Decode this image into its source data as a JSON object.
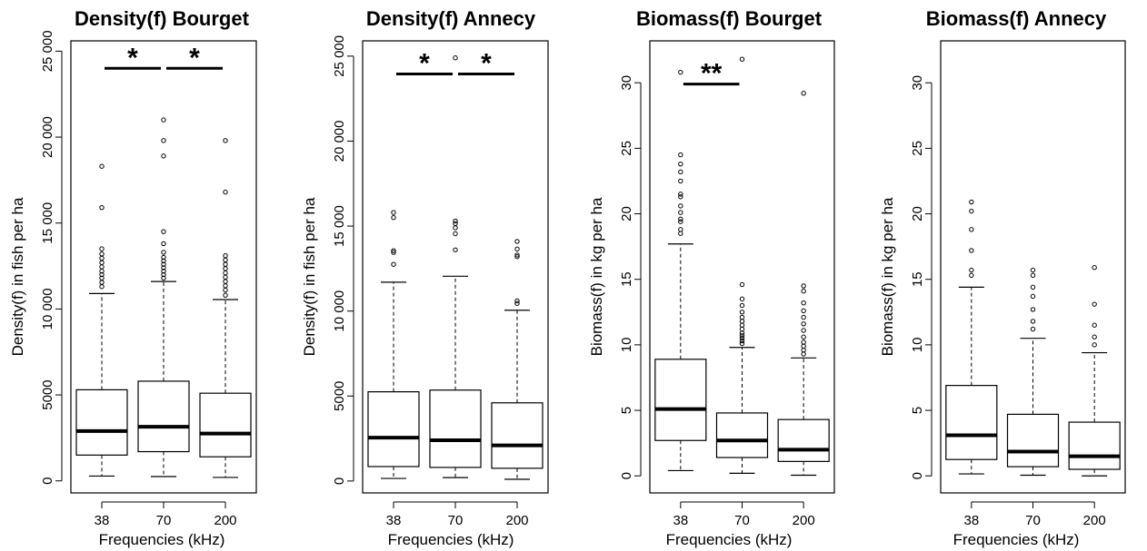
{
  "figure": {
    "panels": [
      {
        "title": "Density(f) Bourget",
        "ylabel": "Density(f) in fish per ha",
        "xlabel": "Frequencies (kHz)"
      },
      {
        "title": "Density(f) Annecy",
        "ylabel": "Density(f) in fish per ha",
        "xlabel": "Frequencies (kHz)"
      },
      {
        "title": "Biomass(f) Bourget",
        "ylabel": "Biomass(f) in kg per ha",
        "xlabel": "Frequencies (kHz)"
      },
      {
        "title": "Biomass(f) Annecy",
        "ylabel": "Biomass(f) in kg per ha",
        "xlabel": "Frequencies (kHz)"
      }
    ]
  },
  "chart_data": [
    {
      "type": "box",
      "title": "Density(f) Bourget",
      "xlabel": "Frequencies (kHz)",
      "ylabel": "Density(f) in fish per ha",
      "categories": [
        "38",
        "70",
        "200"
      ],
      "yticks": [
        0,
        5000,
        10000,
        15000,
        20000,
        25000
      ],
      "ytick_labels": [
        "0",
        "5000",
        "10 000",
        "15 000",
        "20 000",
        "25 000"
      ],
      "ylim": [
        -700,
        25600
      ],
      "boxes": [
        {
          "category": "38",
          "whisker_low": 280,
          "q1": 1500,
          "median": 2900,
          "q3": 5300,
          "whisker_high": 10900,
          "outliers": [
            11300,
            11550,
            11800,
            12000,
            12200,
            12450,
            12700,
            12950,
            13200,
            13500,
            15900,
            18300
          ]
        },
        {
          "category": "70",
          "whisker_low": 250,
          "q1": 1700,
          "median": 3150,
          "q3": 5800,
          "whisker_high": 11600,
          "outliers": [
            11800,
            12000,
            12200,
            12400,
            12600,
            12800,
            13000,
            13300,
            13800,
            14500,
            18900,
            19800,
            21000
          ]
        },
        {
          "category": "200",
          "whisker_low": 200,
          "q1": 1400,
          "median": 2750,
          "q3": 5100,
          "whisker_high": 10550,
          "outliers": [
            10800,
            11100,
            11350,
            11600,
            11850,
            12100,
            12350,
            12600,
            12850,
            13100,
            16800,
            19800
          ]
        }
      ],
      "significance": [
        {
          "from": "38",
          "to": "70",
          "y": 24000,
          "label": "*"
        },
        {
          "from": "70",
          "to": "200",
          "y": 24000,
          "label": "*"
        }
      ]
    },
    {
      "type": "box",
      "title": "Density(f) Annecy",
      "xlabel": "Frequencies (kHz)",
      "ylabel": "Density(f) in fish per ha",
      "categories": [
        "38",
        "70",
        "200"
      ],
      "yticks": [
        0,
        5000,
        10000,
        15000,
        20000,
        25000
      ],
      "ytick_labels": [
        "0",
        "5000",
        "10 000",
        "15 000",
        "20 000",
        "25 000"
      ],
      "ylim": [
        -700,
        25900
      ],
      "boxes": [
        {
          "category": "38",
          "whisker_low": 150,
          "q1": 850,
          "median": 2550,
          "q3": 5250,
          "whisker_high": 11700,
          "outliers": [
            12750,
            13450,
            13550,
            15500,
            15800
          ]
        },
        {
          "category": "70",
          "whisker_low": 200,
          "q1": 800,
          "median": 2400,
          "q3": 5350,
          "whisker_high": 12050,
          "outliers": [
            13600,
            14550,
            14900,
            15150,
            15300,
            24900
          ]
        },
        {
          "category": "200",
          "whisker_low": 100,
          "q1": 750,
          "median": 2100,
          "q3": 4600,
          "whisker_high": 10050,
          "outliers": [
            10450,
            10600,
            13200,
            13300,
            13650,
            14100
          ]
        }
      ],
      "significance": [
        {
          "from": "38",
          "to": "70",
          "y": 23950,
          "label": "*"
        },
        {
          "from": "70",
          "to": "200",
          "y": 23950,
          "label": "*"
        }
      ]
    },
    {
      "type": "box",
      "title": "Biomass(f) Bourget",
      "xlabel": "Frequencies (kHz)",
      "ylabel": "Biomass(f) in kg per ha",
      "categories": [
        "38",
        "70",
        "200"
      ],
      "yticks": [
        0,
        5,
        10,
        15,
        20,
        25,
        30
      ],
      "ytick_labels": [
        "0",
        "5",
        "10",
        "15",
        "20",
        "25",
        "30"
      ],
      "ylim": [
        -1.3,
        33.2
      ],
      "boxes": [
        {
          "category": "38",
          "whisker_low": 0.4,
          "q1": 2.7,
          "median": 5.1,
          "q3": 8.9,
          "whisker_high": 17.7,
          "outliers": [
            18.5,
            18.8,
            19.4,
            19.6,
            20.1,
            20.6,
            21.3,
            21.5,
            22.5,
            23.2,
            23.8,
            24.5,
            30.8
          ]
        },
        {
          "category": "70",
          "whisker_low": 0.2,
          "q1": 1.4,
          "median": 2.7,
          "q3": 4.8,
          "whisker_high": 9.8,
          "outliers": [
            10.1,
            10.3,
            10.5,
            10.7,
            10.9,
            11.2,
            11.5,
            11.8,
            12.1,
            12.5,
            13,
            13.5,
            14.6,
            31.8
          ]
        },
        {
          "category": "200",
          "whisker_low": 0.05,
          "q1": 1.1,
          "median": 2.0,
          "q3": 4.3,
          "whisker_high": 9.0,
          "outliers": [
            9.3,
            9.6,
            9.9,
            10.2,
            10.6,
            11.1,
            11.6,
            12.1,
            12.6,
            13.2,
            14.1,
            14.5,
            29.2
          ]
        }
      ],
      "significance": [
        {
          "from": "38",
          "to": "70",
          "y": 29.9,
          "label": "**"
        }
      ]
    },
    {
      "type": "box",
      "title": "Biomass(f) Annecy",
      "xlabel": "Frequencies (kHz)",
      "ylabel": "Biomass(f) in kg per ha",
      "categories": [
        "38",
        "70",
        "200"
      ],
      "yticks": [
        0,
        5,
        10,
        15,
        20,
        25,
        30
      ],
      "ytick_labels": [
        "0",
        "5",
        "10",
        "15",
        "20",
        "25",
        "30"
      ],
      "ylim": [
        -1.3,
        33.2
      ],
      "boxes": [
        {
          "category": "38",
          "whisker_low": 0.15,
          "q1": 1.25,
          "median": 3.1,
          "q3": 6.9,
          "whisker_high": 14.4,
          "outliers": [
            15.3,
            15.7,
            17.2,
            18.8,
            20.2,
            20.9
          ]
        },
        {
          "category": "70",
          "whisker_low": 0.05,
          "q1": 0.7,
          "median": 1.85,
          "q3": 4.7,
          "whisker_high": 10.5,
          "outliers": [
            11.2,
            11.8,
            12.7,
            13.7,
            14.4,
            15.3,
            15.7
          ]
        },
        {
          "category": "200",
          "whisker_low": 0.0,
          "q1": 0.5,
          "median": 1.5,
          "q3": 4.1,
          "whisker_high": 9.4,
          "outliers": [
            10.0,
            10.6,
            11.5,
            13.1,
            15.9
          ]
        }
      ],
      "significance": []
    }
  ]
}
